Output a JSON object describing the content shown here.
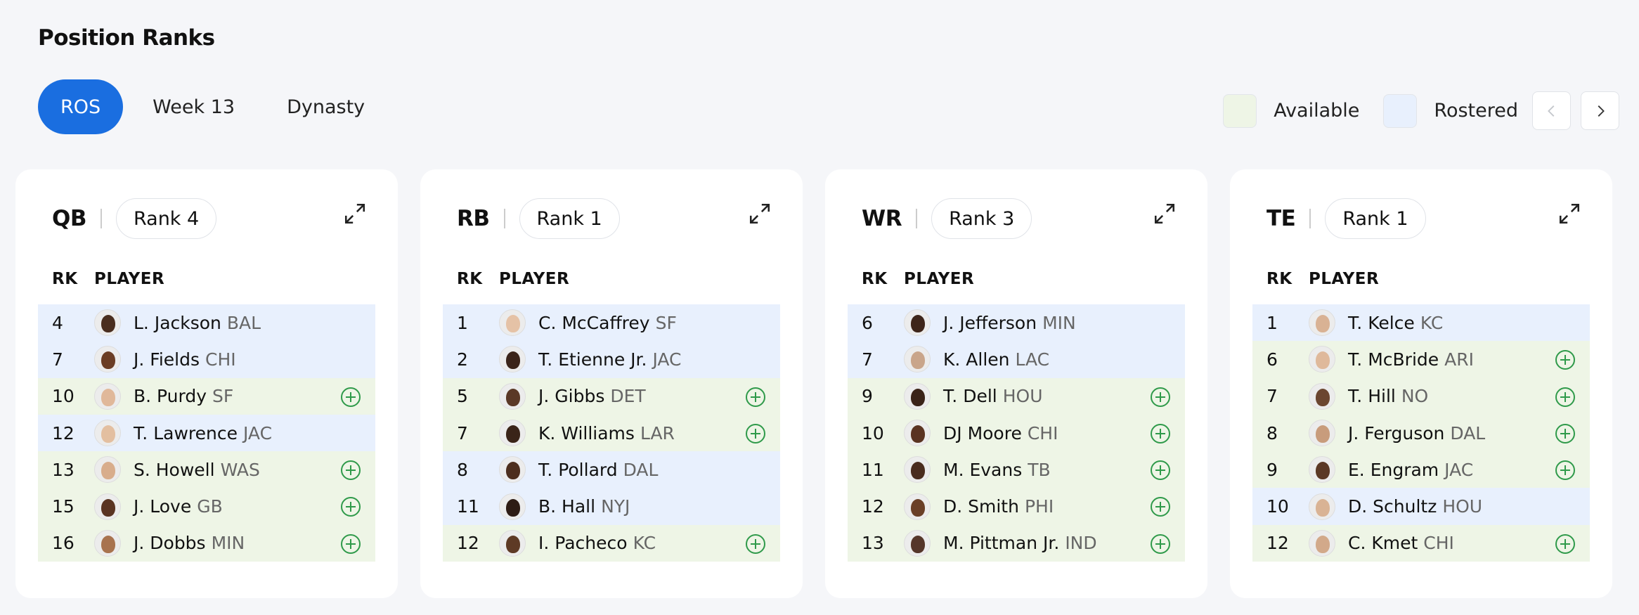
{
  "page": {
    "title": "Position Ranks"
  },
  "tabs": [
    {
      "label": "ROS",
      "active": true
    },
    {
      "label": "Week 13",
      "active": false
    },
    {
      "label": "Dynasty",
      "active": false
    }
  ],
  "legend": {
    "available": "Available",
    "rostered": "Rostered"
  },
  "colors": {
    "accent": "#1a6ee0",
    "available": "#eef5e6",
    "rostered": "#e8f0fd",
    "add_icon": "#2f9a4a"
  },
  "table_headers": {
    "rank": "RK",
    "player": "PLAYER"
  },
  "cards": [
    {
      "position": "QB",
      "rank_label": "Rank 4",
      "rows": [
        {
          "rk": "4",
          "name": "L. Jackson",
          "team": "BAL",
          "status": "rostered",
          "skin": "#4a2e1f"
        },
        {
          "rk": "7",
          "name": "J. Fields",
          "team": "CHI",
          "status": "rostered",
          "skin": "#6b3d24"
        },
        {
          "rk": "10",
          "name": "B. Purdy",
          "team": "SF",
          "status": "available",
          "skin": "#e0b89a"
        },
        {
          "rk": "12",
          "name": "T. Lawrence",
          "team": "JAC",
          "status": "rostered",
          "skin": "#e3bfa0"
        },
        {
          "rk": "13",
          "name": "S. Howell",
          "team": "WAS",
          "status": "available",
          "skin": "#d8ad8c"
        },
        {
          "rk": "15",
          "name": "J. Love",
          "team": "GB",
          "status": "available",
          "skin": "#5a3422"
        },
        {
          "rk": "16",
          "name": "J. Dobbs",
          "team": "MIN",
          "status": "available",
          "skin": "#a8734f"
        }
      ]
    },
    {
      "position": "RB",
      "rank_label": "Rank 1",
      "rows": [
        {
          "rk": "1",
          "name": "C. McCaffrey",
          "team": "SF",
          "status": "rostered",
          "skin": "#e5c2a6"
        },
        {
          "rk": "2",
          "name": "T. Etienne Jr.",
          "team": "JAC",
          "status": "rostered",
          "skin": "#3b2419"
        },
        {
          "rk": "5",
          "name": "J. Gibbs",
          "team": "DET",
          "status": "available",
          "skin": "#5a3826"
        },
        {
          "rk": "7",
          "name": "K. Williams",
          "team": "LAR",
          "status": "available",
          "skin": "#3a2418"
        },
        {
          "rk": "8",
          "name": "T. Pollard",
          "team": "DAL",
          "status": "rostered",
          "skin": "#4d2e1d"
        },
        {
          "rk": "11",
          "name": "B. Hall",
          "team": "NYJ",
          "status": "rostered",
          "skin": "#2e1c14"
        },
        {
          "rk": "12",
          "name": "I. Pacheco",
          "team": "KC",
          "status": "available",
          "skin": "#5e3a25"
        }
      ]
    },
    {
      "position": "WR",
      "rank_label": "Rank 3",
      "rows": [
        {
          "rk": "6",
          "name": "J. Jefferson",
          "team": "MIN",
          "status": "rostered",
          "skin": "#3e2519"
        },
        {
          "rk": "7",
          "name": "K. Allen",
          "team": "LAC",
          "status": "rostered",
          "skin": "#c9a58a"
        },
        {
          "rk": "9",
          "name": "T. Dell",
          "team": "HOU",
          "status": "available",
          "skin": "#3a2318"
        },
        {
          "rk": "10",
          "name": "DJ Moore",
          "team": "CHI",
          "status": "available",
          "skin": "#5a3322"
        },
        {
          "rk": "11",
          "name": "M. Evans",
          "team": "TB",
          "status": "available",
          "skin": "#4a2c1e"
        },
        {
          "rk": "12",
          "name": "D. Smith",
          "team": "PHI",
          "status": "available",
          "skin": "#6a3f27"
        },
        {
          "rk": "13",
          "name": "M. Pittman Jr.",
          "team": "IND",
          "status": "available",
          "skin": "#55362a"
        }
      ]
    },
    {
      "position": "TE",
      "rank_label": "Rank 1",
      "rows": [
        {
          "rk": "1",
          "name": "T. Kelce",
          "team": "KC",
          "status": "rostered",
          "skin": "#d9b294"
        },
        {
          "rk": "6",
          "name": "T. McBride",
          "team": "ARI",
          "status": "available",
          "skin": "#dfb99b"
        },
        {
          "rk": "7",
          "name": "T. Hill",
          "team": "NO",
          "status": "available",
          "skin": "#6b4630"
        },
        {
          "rk": "8",
          "name": "J. Ferguson",
          "team": "DAL",
          "status": "available",
          "skin": "#c89c7c"
        },
        {
          "rk": "9",
          "name": "E. Engram",
          "team": "JAC",
          "status": "available",
          "skin": "#5b3825"
        },
        {
          "rk": "10",
          "name": "D. Schultz",
          "team": "HOU",
          "status": "rostered",
          "skin": "#d9b394"
        },
        {
          "rk": "12",
          "name": "C. Kmet",
          "team": "CHI",
          "status": "available",
          "skin": "#d2a98a"
        }
      ]
    }
  ]
}
